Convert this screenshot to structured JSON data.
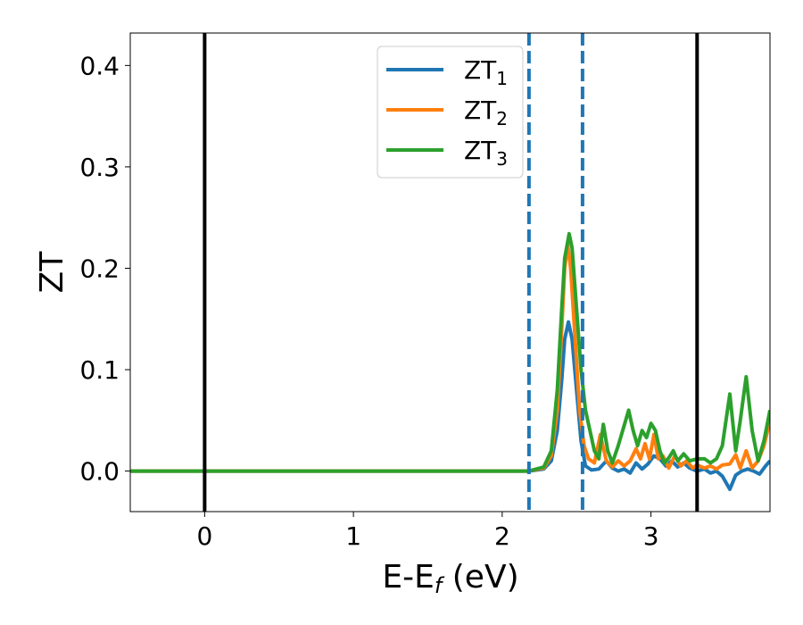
{
  "chart_data": {
    "type": "line",
    "xlabel": "E-E",
    "xlabel_sub": "f",
    "xlabel_unit": "(eV)",
    "ylabel": "ZT",
    "xlim": [
      -0.5,
      3.8
    ],
    "ylim": [
      -0.04,
      0.432
    ],
    "xticks": [
      0,
      1,
      2,
      3
    ],
    "xtick_labels": [
      "0",
      "1",
      "2",
      "3"
    ],
    "yticks": [
      0.0,
      0.1,
      0.2,
      0.3,
      0.4
    ],
    "ytick_labels": [
      "0.0",
      "0.1",
      "0.2",
      "0.3",
      "0.4"
    ],
    "grid": false,
    "legend_position": "upper-center",
    "vlines": [
      {
        "x": 0.0,
        "style": "solid",
        "color": "#000000"
      },
      {
        "x": 3.31,
        "style": "solid",
        "color": "#000000"
      },
      {
        "x": 2.18,
        "style": "dashed",
        "color": "#1f77b4"
      },
      {
        "x": 2.54,
        "style": "dashed",
        "color": "#1f77b4"
      }
    ],
    "series": [
      {
        "name": "ZT",
        "subscript": "1",
        "color": "#1f77b4",
        "points": [
          [
            -0.5,
            0
          ],
          [
            2.18,
            0
          ],
          [
            2.28,
            0.002
          ],
          [
            2.33,
            0.01
          ],
          [
            2.37,
            0.04
          ],
          [
            2.4,
            0.09
          ],
          [
            2.42,
            0.13
          ],
          [
            2.445,
            0.147
          ],
          [
            2.47,
            0.13
          ],
          [
            2.5,
            0.08
          ],
          [
            2.53,
            0.03
          ],
          [
            2.56,
            0.005
          ],
          [
            2.6,
            0.001
          ],
          [
            2.65,
            0.002
          ],
          [
            2.7,
            0.01
          ],
          [
            2.74,
            0.003
          ],
          [
            2.78,
            0.0
          ],
          [
            2.82,
            0.002
          ],
          [
            2.86,
            -0.002
          ],
          [
            2.9,
            0.008
          ],
          [
            2.94,
            0.002
          ],
          [
            2.98,
            0.007
          ],
          [
            3.02,
            0.015
          ],
          [
            3.06,
            0.012
          ],
          [
            3.1,
            0.005
          ],
          [
            3.14,
            0.01
          ],
          [
            3.18,
            0.004
          ],
          [
            3.22,
            0.008
          ],
          [
            3.26,
            0.003
          ],
          [
            3.31,
            0.0
          ],
          [
            3.36,
            0.002
          ],
          [
            3.4,
            -0.002
          ],
          [
            3.44,
            0.0
          ],
          [
            3.48,
            -0.005
          ],
          [
            3.53,
            -0.018
          ],
          [
            3.57,
            -0.004
          ],
          [
            3.61,
            0.0
          ],
          [
            3.65,
            0.002
          ],
          [
            3.69,
            0.0
          ],
          [
            3.73,
            -0.003
          ],
          [
            3.77,
            0.005
          ],
          [
            3.8,
            0.01
          ]
        ]
      },
      {
        "name": "ZT",
        "subscript": "2",
        "color": "#ff7f0e",
        "points": [
          [
            -0.5,
            0
          ],
          [
            2.18,
            0
          ],
          [
            2.28,
            0.003
          ],
          [
            2.33,
            0.015
          ],
          [
            2.37,
            0.06
          ],
          [
            2.4,
            0.14
          ],
          [
            2.42,
            0.2
          ],
          [
            2.44,
            0.224
          ],
          [
            2.46,
            0.2
          ],
          [
            2.49,
            0.13
          ],
          [
            2.52,
            0.06
          ],
          [
            2.55,
            0.025
          ],
          [
            2.58,
            0.012
          ],
          [
            2.62,
            0.008
          ],
          [
            2.66,
            0.036
          ],
          [
            2.7,
            0.01
          ],
          [
            2.74,
            0.004
          ],
          [
            2.78,
            0.01
          ],
          [
            2.82,
            0.005
          ],
          [
            2.86,
            0.01
          ],
          [
            2.9,
            0.022
          ],
          [
            2.93,
            0.012
          ],
          [
            2.96,
            0.027
          ],
          [
            2.99,
            0.012
          ],
          [
            3.02,
            0.036
          ],
          [
            3.05,
            0.012
          ],
          [
            3.08,
            0.015
          ],
          [
            3.12,
            0.003
          ],
          [
            3.16,
            0.015
          ],
          [
            3.2,
            0.005
          ],
          [
            3.24,
            0.01
          ],
          [
            3.28,
            0.003
          ],
          [
            3.31,
            0.006
          ],
          [
            3.36,
            0.003
          ],
          [
            3.4,
            0.005
          ],
          [
            3.44,
            0.002
          ],
          [
            3.48,
            0.006
          ],
          [
            3.53,
            0.007
          ],
          [
            3.57,
            0.016
          ],
          [
            3.6,
            0.003
          ],
          [
            3.64,
            0.02
          ],
          [
            3.68,
            0.003
          ],
          [
            3.72,
            0.01
          ],
          [
            3.76,
            0.025
          ],
          [
            3.8,
            0.05
          ]
        ]
      },
      {
        "name": "ZT",
        "subscript": "3",
        "color": "#2ca02c",
        "points": [
          [
            -0.5,
            0
          ],
          [
            2.18,
            0
          ],
          [
            2.28,
            0.004
          ],
          [
            2.33,
            0.02
          ],
          [
            2.37,
            0.08
          ],
          [
            2.4,
            0.16
          ],
          [
            2.42,
            0.21
          ],
          [
            2.45,
            0.234
          ],
          [
            2.47,
            0.22
          ],
          [
            2.5,
            0.16
          ],
          [
            2.53,
            0.1
          ],
          [
            2.56,
            0.06
          ],
          [
            2.59,
            0.04
          ],
          [
            2.62,
            0.02
          ],
          [
            2.65,
            0.012
          ],
          [
            2.68,
            0.046
          ],
          [
            2.71,
            0.02
          ],
          [
            2.74,
            0.008
          ],
          [
            2.78,
            0.025
          ],
          [
            2.82,
            0.045
          ],
          [
            2.85,
            0.06
          ],
          [
            2.88,
            0.04
          ],
          [
            2.91,
            0.025
          ],
          [
            2.94,
            0.04
          ],
          [
            2.97,
            0.033
          ],
          [
            3.0,
            0.047
          ],
          [
            3.03,
            0.04
          ],
          [
            3.06,
            0.02
          ],
          [
            3.09,
            0.008
          ],
          [
            3.12,
            0.013
          ],
          [
            3.15,
            0.02
          ],
          [
            3.18,
            0.01
          ],
          [
            3.22,
            0.017
          ],
          [
            3.26,
            0.01
          ],
          [
            3.31,
            0.012
          ],
          [
            3.36,
            0.012
          ],
          [
            3.4,
            0.008
          ],
          [
            3.44,
            0.012
          ],
          [
            3.48,
            0.025
          ],
          [
            3.53,
            0.076
          ],
          [
            3.57,
            0.02
          ],
          [
            3.6,
            0.05
          ],
          [
            3.64,
            0.093
          ],
          [
            3.68,
            0.04
          ],
          [
            3.72,
            0.01
          ],
          [
            3.76,
            0.03
          ],
          [
            3.8,
            0.06
          ]
        ]
      }
    ]
  }
}
